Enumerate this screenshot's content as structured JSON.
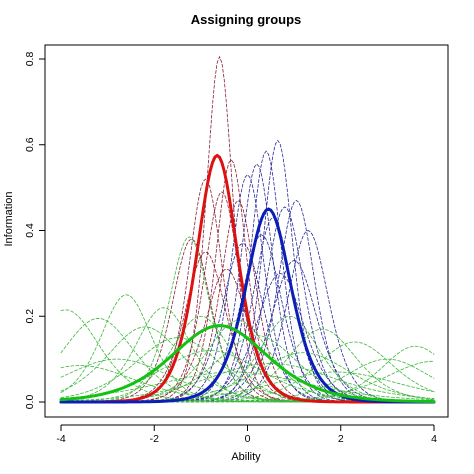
{
  "chart_data": {
    "type": "line",
    "title": "Assigning groups",
    "xlabel": "Ability",
    "ylabel": "Information",
    "xlim": [
      -4,
      4
    ],
    "ylim": [
      0,
      0.82
    ],
    "x_ticks": [
      "-4",
      "-2",
      "0",
      "2",
      "4"
    ],
    "y_ticks": [
      "0.0",
      "0.2",
      "0.4",
      "0.6",
      "0.8"
    ],
    "grid": false,
    "legend": "none",
    "colors": {
      "red": "#dd1111",
      "blue": "#0b1fb8",
      "green": "#13c013",
      "dark_red": "#8b2035",
      "blue_dashed": "#2a2a9c",
      "green_dashed": "#3cb83c"
    },
    "series": [
      {
        "group": "red",
        "style": "solid",
        "peak_x": -0.65,
        "peak_y": 0.575,
        "width": 0.95
      },
      {
        "group": "blue",
        "style": "solid",
        "peak_x": 0.45,
        "peak_y": 0.45,
        "width": 1.05
      },
      {
        "group": "green",
        "style": "solid",
        "peak_x": -0.6,
        "peak_y": 0.178,
        "width": 2.25
      },
      {
        "group": "dark_red",
        "style": "dashed",
        "peak_x": -0.6,
        "peak_y": 0.805,
        "width": 0.62
      },
      {
        "group": "dark_red",
        "style": "dashed",
        "peak_x": -0.35,
        "peak_y": 0.565,
        "width": 0.72
      },
      {
        "group": "dark_red",
        "style": "dashed",
        "peak_x": -0.9,
        "peak_y": 0.52,
        "width": 0.78
      },
      {
        "group": "dark_red",
        "style": "dashed",
        "peak_x": -0.55,
        "peak_y": 0.49,
        "width": 0.82
      },
      {
        "group": "dark_red",
        "style": "dashed",
        "peak_x": -0.2,
        "peak_y": 0.47,
        "width": 0.8
      },
      {
        "group": "dark_red",
        "style": "dashed",
        "peak_x": -1.2,
        "peak_y": 0.38,
        "width": 0.9
      },
      {
        "group": "dark_red",
        "style": "dashed",
        "peak_x": -0.9,
        "peak_y": 0.35,
        "width": 0.95
      },
      {
        "group": "dark_red",
        "style": "dashed",
        "peak_x": -0.45,
        "peak_y": 0.31,
        "width": 0.98
      },
      {
        "group": "blue_dashed",
        "style": "dashed",
        "peak_x": 0.65,
        "peak_y": 0.61,
        "width": 0.7
      },
      {
        "group": "blue_dashed",
        "style": "dashed",
        "peak_x": 0.4,
        "peak_y": 0.585,
        "width": 0.72
      },
      {
        "group": "blue_dashed",
        "style": "dashed",
        "peak_x": 0.2,
        "peak_y": 0.555,
        "width": 0.75
      },
      {
        "group": "blue_dashed",
        "style": "dashed",
        "peak_x": 0.0,
        "peak_y": 0.53,
        "width": 0.78
      },
      {
        "group": "blue_dashed",
        "style": "dashed",
        "peak_x": 1.05,
        "peak_y": 0.47,
        "width": 0.85
      },
      {
        "group": "blue_dashed",
        "style": "dashed",
        "peak_x": 0.8,
        "peak_y": 0.455,
        "width": 0.88
      },
      {
        "group": "blue_dashed",
        "style": "dashed",
        "peak_x": 0.55,
        "peak_y": 0.43,
        "width": 0.9
      },
      {
        "group": "blue_dashed",
        "style": "dashed",
        "peak_x": 1.3,
        "peak_y": 0.4,
        "width": 0.95
      },
      {
        "group": "blue_dashed",
        "style": "dashed",
        "peak_x": 0.3,
        "peak_y": 0.39,
        "width": 0.95
      },
      {
        "group": "blue_dashed",
        "style": "dashed",
        "peak_x": -0.1,
        "peak_y": 0.37,
        "width": 0.95
      },
      {
        "group": "blue_dashed",
        "style": "dashed",
        "peak_x": 1.0,
        "peak_y": 0.33,
        "width": 1.05
      },
      {
        "group": "blue_dashed",
        "style": "dashed",
        "peak_x": 0.7,
        "peak_y": 0.3,
        "width": 1.1
      },
      {
        "group": "green_dashed",
        "style": "dashed",
        "peak_x": -1.25,
        "peak_y": 0.385,
        "width": 0.95
      },
      {
        "group": "green_dashed",
        "style": "dashed",
        "peak_x": -2.6,
        "peak_y": 0.25,
        "width": 1.2
      },
      {
        "group": "green_dashed",
        "style": "dashed",
        "peak_x": -3.9,
        "peak_y": 0.215,
        "width": 1.6
      },
      {
        "group": "green_dashed",
        "style": "dashed",
        "peak_x": -1.8,
        "peak_y": 0.22,
        "width": 1.3
      },
      {
        "group": "green_dashed",
        "style": "dashed",
        "peak_x": -3.2,
        "peak_y": 0.195,
        "width": 1.7
      },
      {
        "group": "green_dashed",
        "style": "dashed",
        "peak_x": -1.0,
        "peak_y": 0.2,
        "width": 1.4
      },
      {
        "group": "green_dashed",
        "style": "dashed",
        "peak_x": 0.9,
        "peak_y": 0.2,
        "width": 1.4
      },
      {
        "group": "green_dashed",
        "style": "dashed",
        "peak_x": -0.2,
        "peak_y": 0.19,
        "width": 1.5
      },
      {
        "group": "green_dashed",
        "style": "dashed",
        "peak_x": -2.2,
        "peak_y": 0.175,
        "width": 1.8
      },
      {
        "group": "green_dashed",
        "style": "dashed",
        "peak_x": 1.6,
        "peak_y": 0.17,
        "width": 1.6
      },
      {
        "group": "green_dashed",
        "style": "dashed",
        "peak_x": 0.2,
        "peak_y": 0.155,
        "width": 1.9
      },
      {
        "group": "green_dashed",
        "style": "dashed",
        "peak_x": -1.5,
        "peak_y": 0.15,
        "width": 2.0
      },
      {
        "group": "green_dashed",
        "style": "dashed",
        "peak_x": 2.3,
        "peak_y": 0.14,
        "width": 1.8
      },
      {
        "group": "green_dashed",
        "style": "dashed",
        "peak_x": 3.6,
        "peak_y": 0.13,
        "width": 1.6
      },
      {
        "group": "green_dashed",
        "style": "dashed",
        "peak_x": -0.8,
        "peak_y": 0.12,
        "width": 2.4
      },
      {
        "group": "green_dashed",
        "style": "dashed",
        "peak_x": 1.2,
        "peak_y": 0.115,
        "width": 2.2
      },
      {
        "group": "green_dashed",
        "style": "dashed",
        "peak_x": -2.8,
        "peak_y": 0.1,
        "width": 2.5
      },
      {
        "group": "green_dashed",
        "style": "dashed",
        "peak_x": 3.0,
        "peak_y": 0.1,
        "width": 2.0
      },
      {
        "group": "green_dashed",
        "style": "dashed",
        "peak_x": 0.5,
        "peak_y": 0.09,
        "width": 3.0
      },
      {
        "group": "green_dashed",
        "style": "dashed",
        "peak_x": -3.6,
        "peak_y": 0.085,
        "width": 2.6
      },
      {
        "group": "green_dashed",
        "style": "dashed",
        "peak_x": 4.0,
        "peak_y": 0.095,
        "width": 2.3
      },
      {
        "group": "green_dashed",
        "style": "dashed",
        "peak_x": -0.3,
        "peak_y": 0.07,
        "width": 3.5
      },
      {
        "group": "green_dashed",
        "style": "dashed",
        "peak_x": 1.9,
        "peak_y": 0.07,
        "width": 3.0
      }
    ]
  }
}
